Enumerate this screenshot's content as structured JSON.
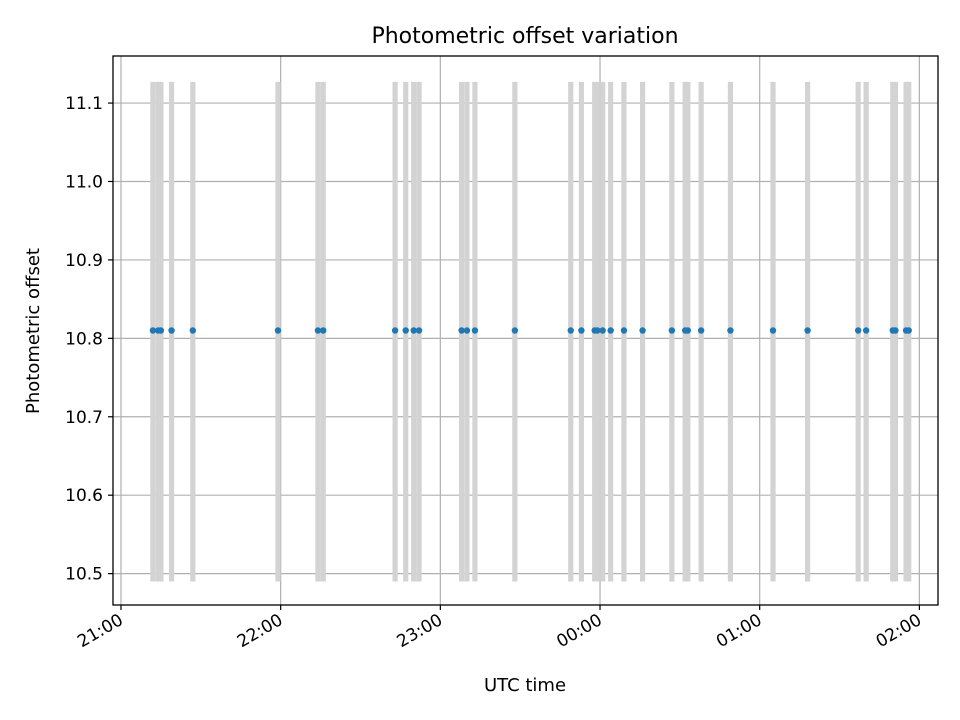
{
  "chart_data": {
    "type": "scatter",
    "title": "Photometric offset variation",
    "xlabel": "UTC time",
    "ylabel": "Photometric offset",
    "x_ticks": [
      "21:00",
      "22:00",
      "23:00",
      "00:00",
      "01:00",
      "02:00"
    ],
    "y_ticks": [
      "10.5",
      "10.6",
      "10.7",
      "10.8",
      "10.9",
      "11.0",
      "11.1"
    ],
    "y_tick_values": [
      10.5,
      10.6,
      10.7,
      10.8,
      10.9,
      11.0,
      11.1
    ],
    "xlim": [
      "20:57",
      "02:07"
    ],
    "ylim": [
      10.46,
      11.16
    ],
    "grid": true,
    "marker_color": "#1f77b4",
    "band_color": "#d3d3d3",
    "band_range": [
      10.49,
      11.127
    ],
    "series": [
      {
        "x": [
          "21:12",
          "21:14",
          "21:15",
          "21:19",
          "21:27",
          "21:59",
          "22:14",
          "22:16",
          "22:43",
          "22:47",
          "22:50",
          "22:52",
          "23:08",
          "23:10",
          "23:13",
          "23:28",
          "23:49",
          "23:53",
          "23:58",
          "23:59",
          "00:01",
          "00:04",
          "00:09",
          "00:16",
          "00:27",
          "00:32",
          "00:33",
          "00:38",
          "00:49",
          "01:05",
          "01:18",
          "01:37",
          "01:40",
          "01:50",
          "01:51",
          "01:55",
          "01:56"
        ],
        "y": [
          10.81,
          10.81,
          10.81,
          10.81,
          10.81,
          10.81,
          10.81,
          10.81,
          10.81,
          10.81,
          10.81,
          10.81,
          10.81,
          10.81,
          10.81,
          10.81,
          10.81,
          10.81,
          10.81,
          10.81,
          10.81,
          10.81,
          10.81,
          10.81,
          10.81,
          10.81,
          10.81,
          10.81,
          10.81,
          10.81,
          10.81,
          10.81,
          10.81,
          10.81,
          10.81,
          10.81,
          10.81
        ]
      }
    ]
  }
}
